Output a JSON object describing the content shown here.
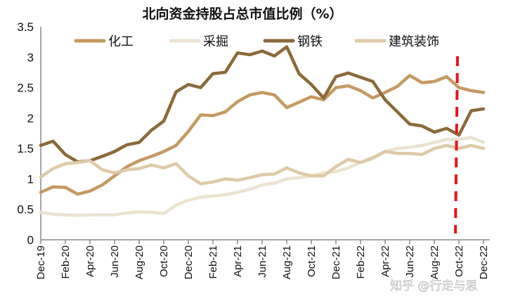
{
  "chart_data": {
    "type": "line",
    "title": "北向资金持股占总市值比例（%）",
    "xlabel": "",
    "ylabel": "",
    "ylim": [
      0,
      3.5
    ],
    "yticks": [
      "0",
      "0.5",
      "1",
      "1.5",
      "2",
      "2.5",
      "3",
      "3.5"
    ],
    "x": [
      "Dec-19",
      "Jan-20",
      "Feb-20",
      "Mar-20",
      "Apr-20",
      "May-20",
      "Jun-20",
      "Jul-20",
      "Aug-20",
      "Sep-20",
      "Oct-20",
      "Nov-20",
      "Dec-20",
      "Jan-21",
      "Feb-21",
      "Mar-21",
      "Apr-21",
      "May-21",
      "Jun-21",
      "Jul-21",
      "Aug-21",
      "Sep-21",
      "Oct-21",
      "Nov-21",
      "Dec-21",
      "Jan-22",
      "Feb-22",
      "Mar-22",
      "Apr-22",
      "May-22",
      "Jun-22",
      "Jul-22",
      "Aug-22",
      "Sep-22",
      "Oct-22",
      "Nov-22",
      "Dec-22"
    ],
    "xtick_labels": [
      "Dec-19",
      "Feb-20",
      "Apr-20",
      "Jun-20",
      "Aug-20",
      "Oct-20",
      "Dec-20",
      "Feb-21",
      "Apr-21",
      "Jun-21",
      "Aug-21",
      "Oct-21",
      "Dec-21",
      "Feb-22",
      "Apr-22",
      "Jun-22",
      "Aug-22",
      "Oct-22",
      "Dec-22"
    ],
    "grid": false,
    "legend_position": "top",
    "series": [
      {
        "name": "化工",
        "color": "#c49a62",
        "values": [
          0.78,
          0.87,
          0.86,
          0.75,
          0.8,
          0.9,
          1.05,
          1.2,
          1.3,
          1.37,
          1.45,
          1.55,
          1.78,
          2.05,
          2.04,
          2.1,
          2.27,
          2.38,
          2.42,
          2.38,
          2.17,
          2.26,
          2.35,
          2.3,
          2.5,
          2.53,
          2.45,
          2.33,
          2.42,
          2.52,
          2.7,
          2.58,
          2.6,
          2.68,
          2.5,
          2.45,
          2.42
        ]
      },
      {
        "name": "采掘",
        "color": "#ebe3d0",
        "values": [
          0.45,
          0.42,
          0.41,
          0.4,
          0.41,
          0.41,
          0.41,
          0.44,
          0.46,
          0.45,
          0.43,
          0.57,
          0.65,
          0.7,
          0.72,
          0.74,
          0.78,
          0.83,
          0.9,
          0.93,
          1.0,
          1.02,
          1.05,
          1.1,
          1.12,
          1.18,
          1.27,
          1.33,
          1.45,
          1.5,
          1.52,
          1.55,
          1.6,
          1.65,
          1.65,
          1.68,
          1.6
        ]
      },
      {
        "name": "钢铁",
        "color": "#8b6a3a",
        "values": [
          1.55,
          1.62,
          1.4,
          1.28,
          1.3,
          1.37,
          1.45,
          1.56,
          1.6,
          1.8,
          1.95,
          2.43,
          2.55,
          2.5,
          2.73,
          2.75,
          3.07,
          3.04,
          3.1,
          3.02,
          3.17,
          2.73,
          2.55,
          2.33,
          2.68,
          2.74,
          2.67,
          2.6,
          2.3,
          2.1,
          1.9,
          1.87,
          1.77,
          1.83,
          1.72,
          2.12,
          2.15
        ]
      },
      {
        "name": "建筑装饰",
        "color": "#dfc9a8",
        "values": [
          1.03,
          1.17,
          1.25,
          1.27,
          1.3,
          1.15,
          1.1,
          1.15,
          1.17,
          1.23,
          1.18,
          1.25,
          1.05,
          0.92,
          0.95,
          1.0,
          0.98,
          1.02,
          1.07,
          1.08,
          1.18,
          1.1,
          1.05,
          1.05,
          1.2,
          1.32,
          1.27,
          1.35,
          1.45,
          1.42,
          1.42,
          1.4,
          1.5,
          1.55,
          1.5,
          1.55,
          1.5
        ]
      }
    ],
    "annotations": [
      {
        "type": "vertical-dashed-line",
        "x": "Oct-22",
        "color": "#e8141b"
      }
    ]
  },
  "watermark": "知乎 @行走与思"
}
